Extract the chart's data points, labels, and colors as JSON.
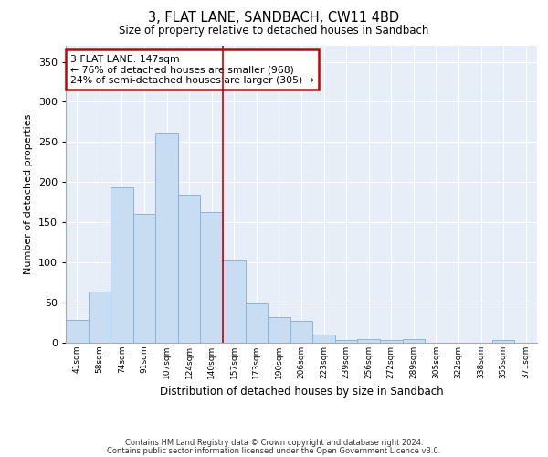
{
  "title": "3, FLAT LANE, SANDBACH, CW11 4BD",
  "subtitle": "Size of property relative to detached houses in Sandbach",
  "xlabel": "Distribution of detached houses by size in Sandbach",
  "ylabel": "Number of detached properties",
  "bar_color": "#c9ddf2",
  "bar_edge_color": "#8ab4d8",
  "categories": [
    "41sqm",
    "58sqm",
    "74sqm",
    "91sqm",
    "107sqm",
    "124sqm",
    "140sqm",
    "157sqm",
    "173sqm",
    "190sqm",
    "206sqm",
    "223sqm",
    "239sqm",
    "256sqm",
    "272sqm",
    "289sqm",
    "305sqm",
    "322sqm",
    "338sqm",
    "355sqm",
    "371sqm"
  ],
  "values": [
    29,
    64,
    194,
    160,
    261,
    184,
    163,
    103,
    49,
    32,
    27,
    10,
    3,
    5,
    3,
    5,
    0,
    0,
    0,
    3,
    0
  ],
  "ylim": [
    0,
    370
  ],
  "yticks": [
    0,
    50,
    100,
    150,
    200,
    250,
    300,
    350
  ],
  "vline_x": 6.5,
  "vline_color": "#cc0000",
  "annotation_text": "3 FLAT LANE: 147sqm\n← 76% of detached houses are smaller (968)\n24% of semi-detached houses are larger (305) →",
  "annotation_box_color": "#ffffff",
  "annotation_box_edge_color": "#cc0000",
  "footer1": "Contains HM Land Registry data © Crown copyright and database right 2024.",
  "footer2": "Contains public sector information licensed under the Open Government Licence v3.0.",
  "bg_color": "#e8eef8",
  "fig_bg_color": "#ffffff"
}
